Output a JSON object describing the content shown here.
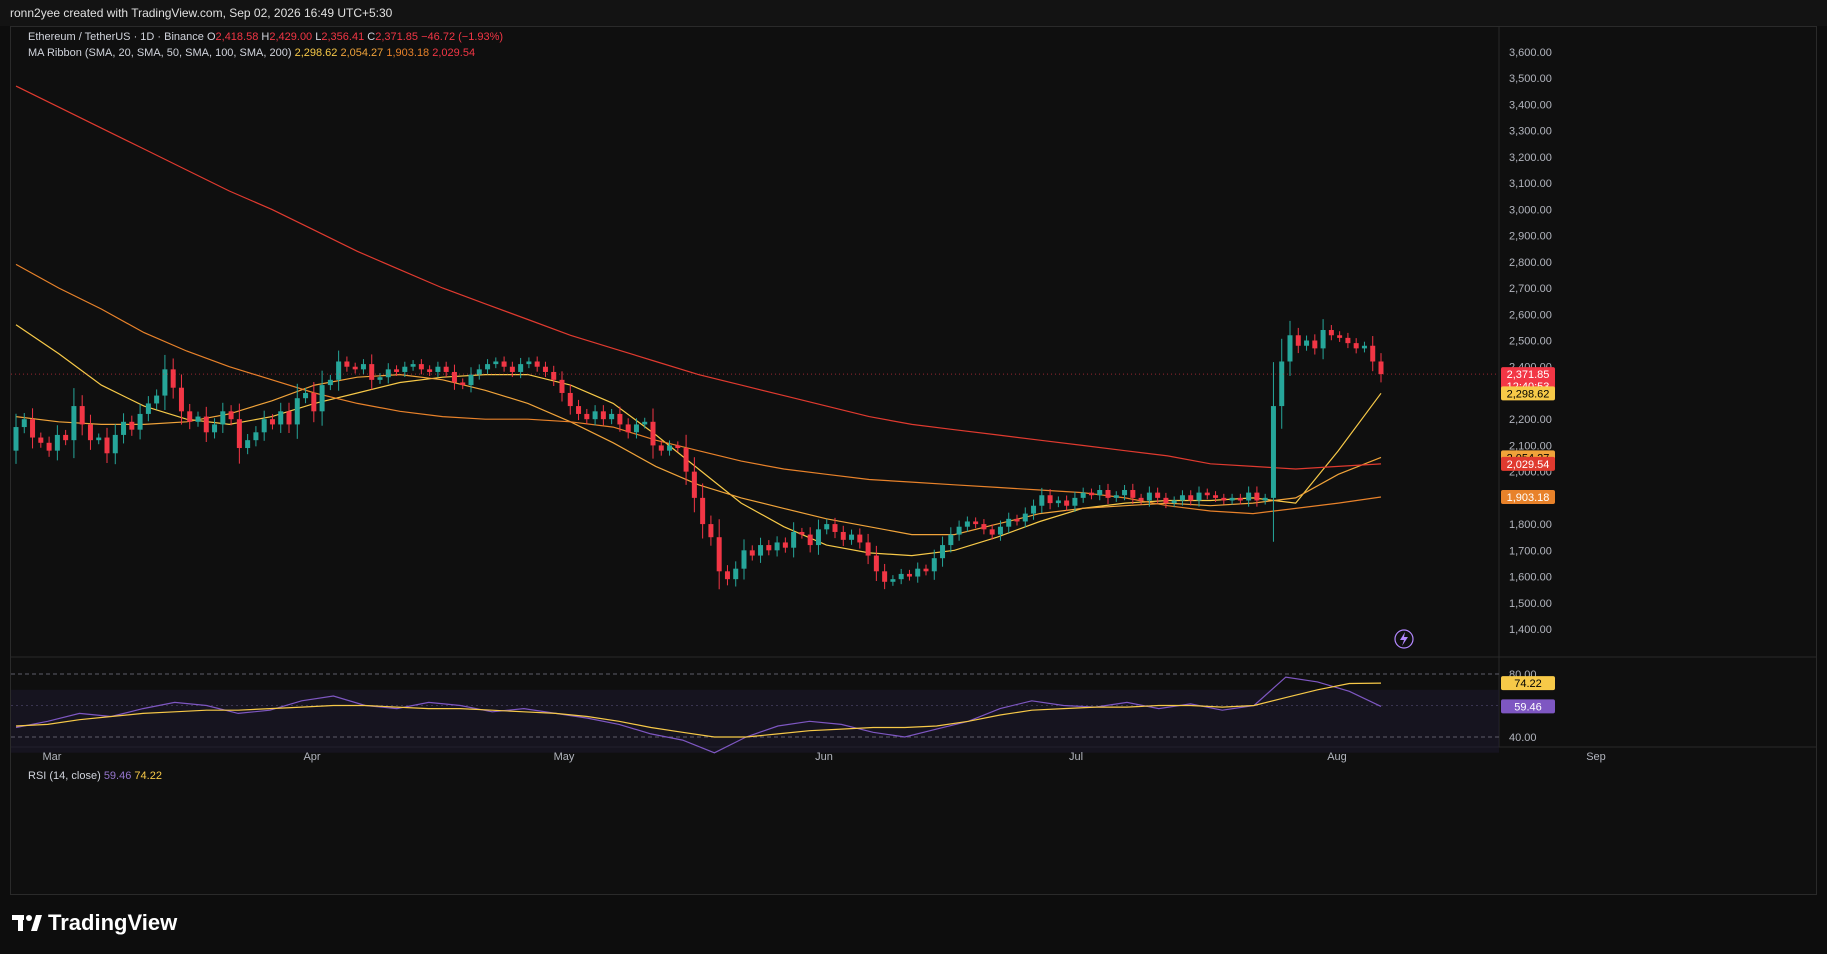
{
  "header": {
    "text": "ronn2yee created with TradingView.com, Sep 02, 2026 16:49 UTC+5:30"
  },
  "legend": {
    "symbol": "Ethereum / TetherUS · 1D · Binance",
    "o_label": "O",
    "o": "2,418.58",
    "h_label": "H",
    "h": "2,429.00",
    "l_label": "L",
    "l": "2,356.41",
    "c_label": "C",
    "c": "2,371.85",
    "change": "−46.72 (−1.93%)",
    "ma_title": "MA Ribbon (SMA, 20, SMA, 50, SMA, 100, SMA, 200)",
    "ma20": "2,298.62",
    "ma50": "2,054.27",
    "ma100": "1,903.18",
    "ma200": "2,029.54",
    "rsi_title": "RSI (14, close)",
    "rsi": "59.46",
    "rsi_ma": "74.22"
  },
  "colors": {
    "up": "#26a69a",
    "down": "#f23645",
    "ma20": "#f7c948",
    "ma50": "#f0a33a",
    "ma100": "#e8822a",
    "ma200": "#e03a2f",
    "rsi": "#7e57c2",
    "rsi_ma": "#f7c948",
    "price_tag": "#f23645"
  },
  "price_axis": {
    "ticks": [
      "3,600.00",
      "3,500.00",
      "3,400.00",
      "3,300.00",
      "3,200.00",
      "3,100.00",
      "3,000.00",
      "2,900.00",
      "2,800.00",
      "2,700.00",
      "2,600.00",
      "2,500.00",
      "2,400.00",
      "2,300.00",
      "2,200.00",
      "2,100.00",
      "2,000.00",
      "1,900.00",
      "1,800.00",
      "1,700.00",
      "1,600.00",
      "1,500.00",
      "1,400.00"
    ],
    "last_price": "2,371.85",
    "countdown": "12:40:53",
    "tags": [
      "2,298.62",
      "2,054.27",
      "2,029.54",
      "1,903.18"
    ]
  },
  "rsi_axis": {
    "ticks": [
      "80.00",
      "40.00"
    ],
    "tags": [
      "74.22",
      "59.46"
    ]
  },
  "time_axis": {
    "labels": [
      "Mar",
      "Apr",
      "May",
      "Jun",
      "Jul",
      "Aug",
      "Sep"
    ]
  },
  "footer": {
    "brand": "TradingView"
  },
  "chart_data": [
    {
      "type": "candlestick",
      "title": "Ethereum / TetherUS · 1D · Binance",
      "ylim": [
        1350,
        3650
      ],
      "series_close": [
        2170,
        2200,
        2130,
        2110,
        2080,
        2140,
        2120,
        2250,
        2180,
        2120,
        2130,
        2070,
        2140,
        2190,
        2160,
        2220,
        2260,
        2290,
        2390,
        2320,
        2230,
        2190,
        2210,
        2150,
        2180,
        2230,
        2200,
        2090,
        2120,
        2150,
        2200,
        2180,
        2230,
        2180,
        2280,
        2300,
        2230,
        2330,
        2350,
        2420,
        2400,
        2390,
        2410,
        2350,
        2360,
        2390,
        2380,
        2400,
        2410,
        2390,
        2380,
        2400,
        2380,
        2340,
        2330,
        2370,
        2390,
        2410,
        2420,
        2400,
        2380,
        2410,
        2420,
        2400,
        2380,
        2350,
        2300,
        2250,
        2220,
        2200,
        2230,
        2200,
        2220,
        2180,
        2150,
        2180,
        2190,
        2100,
        2080,
        2100,
        2090,
        2000,
        1900,
        1800,
        1750,
        1620,
        1590,
        1630,
        1700,
        1680,
        1720,
        1700,
        1730,
        1710,
        1770,
        1760,
        1720,
        1780,
        1800,
        1770,
        1740,
        1760,
        1730,
        1680,
        1620,
        1580,
        1590,
        1610,
        1600,
        1630,
        1620,
        1670,
        1720,
        1760,
        1790,
        1810,
        1800,
        1780,
        1760,
        1790,
        1820,
        1810,
        1840,
        1870,
        1910,
        1880,
        1890,
        1870,
        1900,
        1920,
        1910,
        1930,
        1900,
        1910,
        1930,
        1900,
        1890,
        1920,
        1900,
        1880,
        1890,
        1910,
        1890,
        1920,
        1910,
        1900,
        1890,
        1900,
        1890,
        1920,
        1890,
        1900,
        2250,
        2420,
        2520,
        2480,
        2500,
        2470,
        2540,
        2520,
        2510,
        2490,
        2470,
        2480,
        2420,
        2371.85
      ]
    },
    {
      "type": "line",
      "title": "MA Ribbon (SMA, 20, SMA, 50, SMA, 100, SMA, 200)",
      "x_labels": [
        "Mar",
        "Apr",
        "May",
        "Jun",
        "Jul",
        "Aug",
        "Sep"
      ],
      "series": [
        {
          "name": "SMA 20",
          "values": [
            2560,
            2450,
            2330,
            2250,
            2200,
            2180,
            2210,
            2260,
            2300,
            2340,
            2360,
            2370,
            2370,
            2330,
            2260,
            2140,
            2010,
            1880,
            1790,
            1720,
            1690,
            1680,
            1700,
            1750,
            1810,
            1860,
            1880,
            1890,
            1890,
            1900,
            1880,
            2080,
            2298.62
          ]
        },
        {
          "name": "SMA 50",
          "values": [
            2210,
            2190,
            2180,
            2180,
            2190,
            2220,
            2270,
            2330,
            2360,
            2370,
            2350,
            2310,
            2260,
            2190,
            2110,
            2020,
            1950,
            1900,
            1860,
            1820,
            1790,
            1760,
            1760,
            1800,
            1840,
            1860,
            1870,
            1880,
            1870,
            1880,
            1900,
            1990,
            2054.27
          ]
        },
        {
          "name": "SMA 100",
          "values": [
            2790,
            2700,
            2620,
            2530,
            2460,
            2400,
            2350,
            2300,
            2260,
            2230,
            2210,
            2200,
            2200,
            2190,
            2170,
            2120,
            2080,
            2040,
            2010,
            1990,
            1970,
            1960,
            1950,
            1940,
            1930,
            1920,
            1900,
            1870,
            1850,
            1840,
            1860,
            1880,
            1903.18
          ]
        },
        {
          "name": "SMA 200",
          "values": [
            3470,
            3390,
            3310,
            3230,
            3150,
            3070,
            3000,
            2920,
            2840,
            2770,
            2700,
            2640,
            2580,
            2520,
            2470,
            2420,
            2370,
            2330,
            2290,
            2250,
            2210,
            2180,
            2160,
            2140,
            2120,
            2100,
            2080,
            2060,
            2030,
            2020,
            2010,
            2020,
            2029.54
          ]
        }
      ]
    },
    {
      "type": "line",
      "title": "RSI (14, close)",
      "ylim": [
        30,
        90
      ],
      "series": [
        {
          "name": "RSI",
          "values": [
            46,
            50,
            55,
            53,
            58,
            62,
            60,
            55,
            57,
            63,
            66,
            60,
            58,
            62,
            60,
            56,
            58,
            55,
            52,
            48,
            42,
            38,
            30,
            40,
            47,
            50,
            48,
            43,
            40,
            45,
            50,
            58,
            63,
            60,
            59,
            62,
            58,
            61,
            57,
            60,
            78,
            75,
            69,
            59.46
          ]
        },
        {
          "name": "RSI MA",
          "values": [
            47,
            48,
            51,
            53,
            55,
            56,
            57,
            57,
            58,
            59,
            60,
            60,
            59,
            58,
            58,
            57,
            56,
            55,
            53,
            50,
            46,
            43,
            40,
            40,
            42,
            44,
            45,
            46,
            46,
            47,
            50,
            54,
            57,
            58,
            59,
            59,
            60,
            60,
            59,
            60,
            65,
            70,
            74,
            74.22
          ]
        }
      ]
    }
  ]
}
